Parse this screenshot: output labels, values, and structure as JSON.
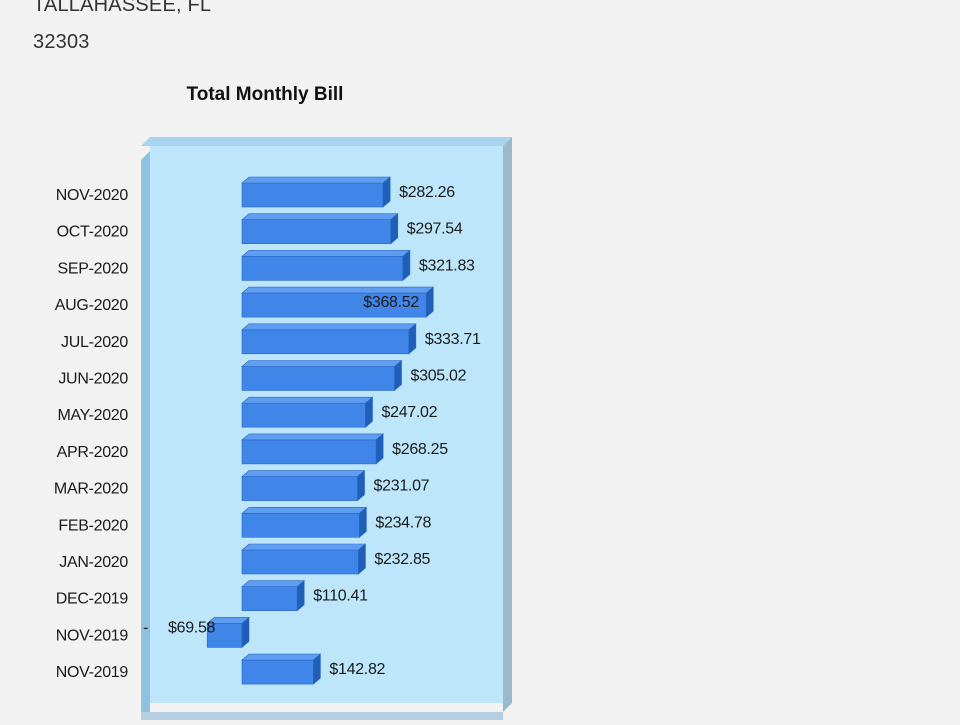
{
  "address": {
    "city_state": "TALLAHASSEE, FL",
    "zip": "32303"
  },
  "chart_data": {
    "type": "bar",
    "orientation": "horizontal",
    "title": "Total Monthly Bill",
    "categories": [
      "NOV-2020",
      "OCT-2020",
      "SEP-2020",
      "AUG-2020",
      "JUL-2020",
      "JUN-2020",
      "MAY-2020",
      "APR-2020",
      "MAR-2020",
      "FEB-2020",
      "JAN-2020",
      "DEC-2019",
      "NOV-2019",
      "NOV-2019"
    ],
    "values": [
      282.26,
      297.54,
      321.83,
      368.52,
      333.71,
      305.02,
      247.02,
      268.25,
      231.07,
      234.78,
      232.85,
      110.41,
      -69.58,
      142.82
    ],
    "value_labels": [
      "$282.26",
      "$297.54",
      "$321.83",
      "$368.52",
      "$333.71",
      "$305.02",
      "$247.02",
      "$268.25",
      "$231.07",
      "$234.78",
      "$232.85",
      "$110.41",
      "$69.58",
      "$142.82"
    ],
    "negative_marker": "-",
    "grid": false,
    "legend": "none",
    "colors": {
      "bar_front": "#3f86e8",
      "bar_top": "#5f9df0",
      "bar_side": "#1f5fb8",
      "bar_edge": "#2a66c4",
      "plot_bg": "#bde6fb",
      "frame_left": "#8ec2e0",
      "frame_top": "#a7d5ef",
      "frame_right": "#9cb8cc",
      "frame_bottom": "#b5cfe0"
    }
  }
}
